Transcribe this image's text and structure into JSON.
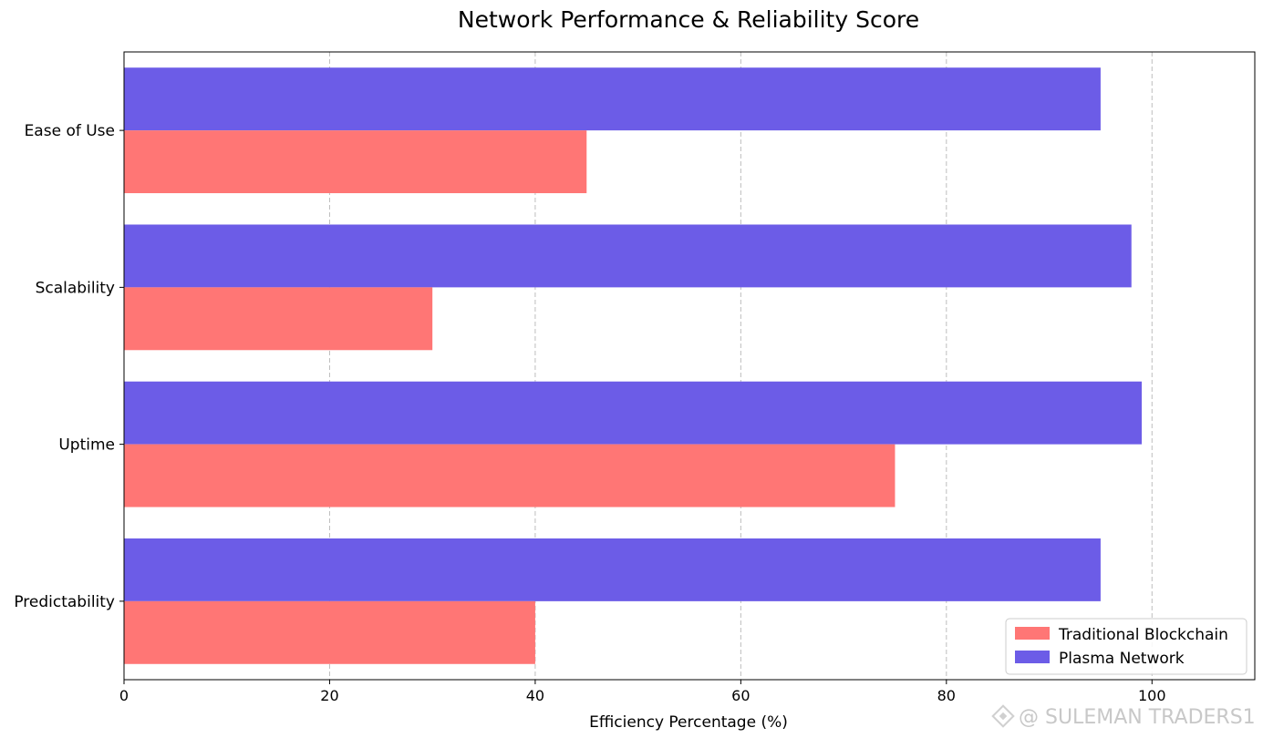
{
  "chart_data": {
    "type": "bar",
    "orientation": "horizontal",
    "title": "Network Performance & Reliability Score",
    "xlabel": "Efficiency Percentage (%)",
    "ylabel": "",
    "xlim": [
      0,
      110
    ],
    "xticks": [
      0,
      20,
      40,
      60,
      80,
      100
    ],
    "grid": "x-dashed",
    "legend_position": "lower-right",
    "categories": [
      "Ease of Use",
      "Scalability",
      "Uptime",
      "Predictability"
    ],
    "series": [
      {
        "name": "Traditional Blockchain",
        "color": "#ff7675",
        "values": [
          45,
          30,
          75,
          40
        ]
      },
      {
        "name": "Plasma Network",
        "color": "#6c5ce7",
        "values": [
          95,
          98,
          99,
          95
        ]
      }
    ]
  },
  "watermark": {
    "text": "@ SULEMAN TRADERS1"
  }
}
